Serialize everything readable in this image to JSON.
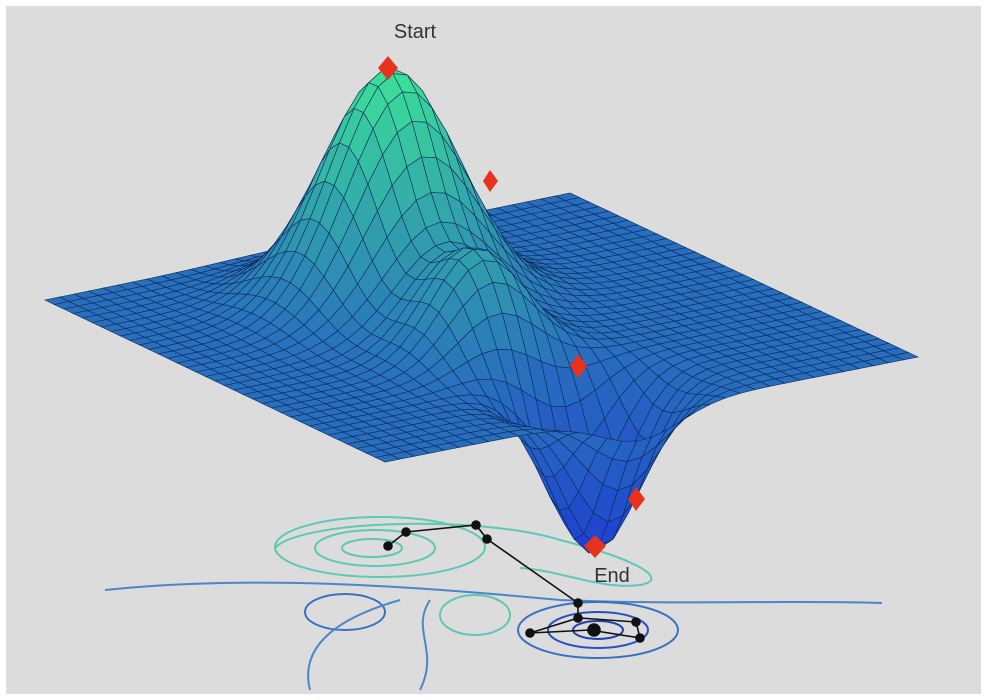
{
  "labels": {
    "start": "Start",
    "end": "End"
  }
}
